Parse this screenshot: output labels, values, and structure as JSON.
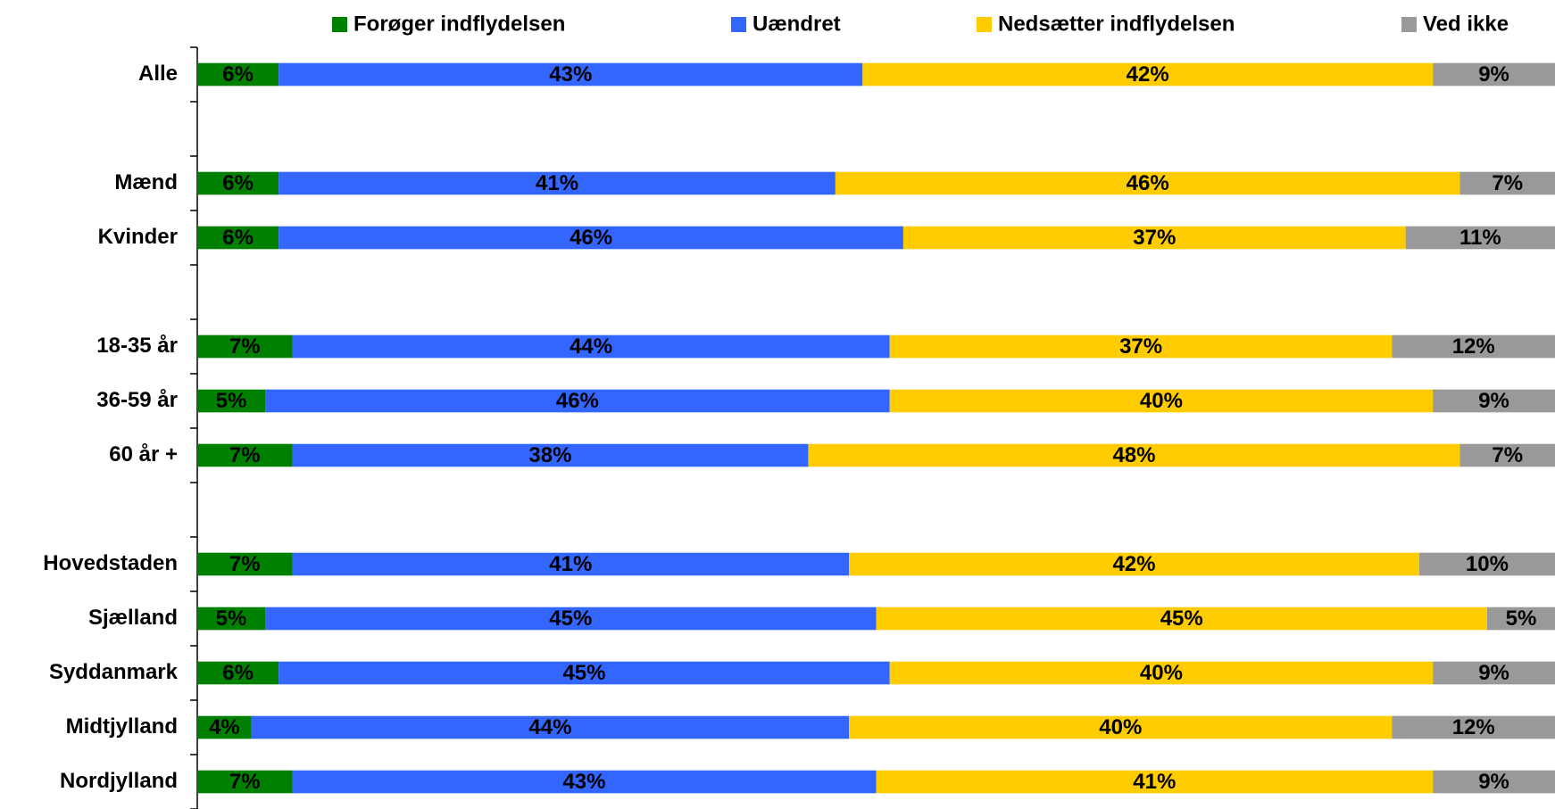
{
  "chart_data": {
    "type": "stacked-bar-horizontal",
    "categories": [
      "Alle",
      null,
      "Mænd",
      "Kvinder",
      null,
      "18-35 år",
      "36-59 år",
      "60 år +",
      null,
      "Hovedstaden",
      "Sjælland",
      "Syddanmark",
      "Midtjylland",
      "Nordjylland"
    ],
    "xlim": [
      0,
      100
    ],
    "legend": "top",
    "series": [
      {
        "name": "Forøger indflydelsen",
        "color": "#008000",
        "values": [
          6,
          null,
          6,
          6,
          null,
          7,
          5,
          7,
          null,
          7,
          5,
          6,
          4,
          7
        ],
        "value_labels": [
          "6%",
          null,
          "6%",
          "6%",
          null,
          "7%",
          "5%",
          "7%",
          null,
          "7%",
          "5%",
          "6%",
          "4%",
          "7%"
        ]
      },
      {
        "name": "Uændret",
        "color": "#3366ff",
        "values": [
          43,
          null,
          41,
          46,
          null,
          44,
          46,
          38,
          null,
          41,
          45,
          45,
          44,
          43
        ],
        "value_labels": [
          "43%",
          null,
          "41%",
          "46%",
          null,
          "44%",
          "46%",
          "38%",
          null,
          "41%",
          "45%",
          "45%",
          "44%",
          "43%"
        ]
      },
      {
        "name": "Nedsætter indflydelsen",
        "color": "#ffcc00",
        "values": [
          42,
          null,
          46,
          37,
          null,
          37,
          40,
          48,
          null,
          42,
          45,
          40,
          40,
          41
        ],
        "value_labels": [
          "42%",
          null,
          "46%",
          "37%",
          null,
          "37%",
          "40%",
          "48%",
          null,
          "42%",
          "45%",
          "40%",
          "40%",
          "41%"
        ]
      },
      {
        "name": "Ved ikke",
        "color": "#999999",
        "values": [
          9,
          null,
          7,
          11,
          null,
          12,
          9,
          7,
          null,
          10,
          5,
          9,
          12,
          9
        ],
        "value_labels": [
          "9%",
          null,
          "7%",
          "11%",
          null,
          "12%",
          "9%",
          "7%",
          null,
          "10%",
          "5%",
          "9%",
          "12%",
          "9%"
        ]
      }
    ]
  }
}
